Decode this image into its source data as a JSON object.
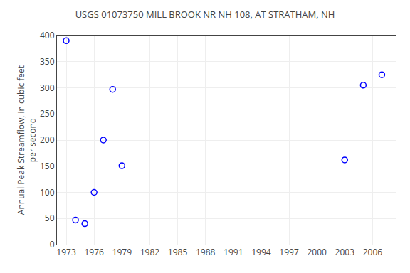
{
  "chart_data": {
    "type": "scatter",
    "title": "USGS 01073750 MILL BROOK NR NH 108, AT STRATHAM, NH",
    "ylabel": "Annual Peak Streamflow, in cubic feet\nper second",
    "x": [
      1973,
      1974,
      1975,
      1976,
      1977,
      1978,
      1979,
      2003,
      2005,
      2007
    ],
    "values": [
      390,
      47,
      40,
      100,
      200,
      297,
      151,
      162,
      305,
      325
    ],
    "color": "#0000ff",
    "marker": "circle-open",
    "xlim": [
      1972,
      2008.5
    ],
    "ylim": [
      0,
      400
    ],
    "xticks": [
      1973,
      1976,
      1979,
      1982,
      1985,
      1988,
      1991,
      1994,
      1997,
      2000,
      2003,
      2006
    ],
    "yticks": [
      0,
      50,
      100,
      150,
      200,
      250,
      300,
      350,
      400
    ],
    "grid": true
  }
}
